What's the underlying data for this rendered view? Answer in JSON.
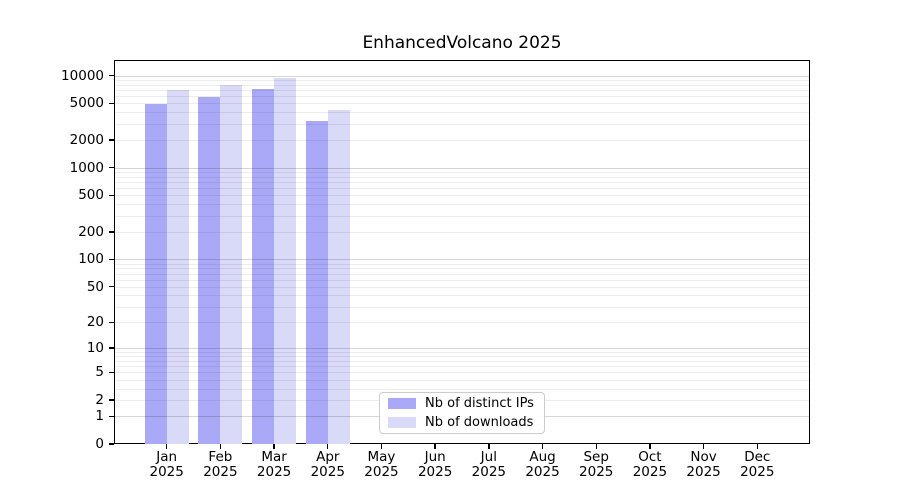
{
  "chart_data": {
    "type": "bar",
    "title": "EnhancedVolcano 2025",
    "months": [
      "Jan",
      "Feb",
      "Mar",
      "Apr",
      "May",
      "Jun",
      "Jul",
      "Aug",
      "Sep",
      "Oct",
      "Nov",
      "Dec"
    ],
    "year": "2025",
    "series": [
      {
        "name": "Nb of distinct IPs",
        "color": "#a9a9f7",
        "values": [
          4900,
          5800,
          7200,
          3200,
          null,
          null,
          null,
          null,
          null,
          null,
          null,
          null
        ]
      },
      {
        "name": "Nb of downloads",
        "color": "#d9d9f8",
        "values": [
          7000,
          7900,
          9400,
          4200,
          null,
          null,
          null,
          null,
          null,
          null,
          null,
          null
        ]
      }
    ],
    "y_ticks": [
      0,
      1,
      2,
      5,
      10,
      20,
      50,
      100,
      200,
      500,
      1000,
      2000,
      5000,
      10000
    ],
    "y_scale": "log10(1+v)",
    "y_axis_max": 14800,
    "grid": "horizontal, major and minor",
    "legend_position": "bottom-center",
    "colors": {
      "grid_major": "rgba(0,0,0,0.16)",
      "grid_minor": "rgba(0,0,0,0.07)",
      "axis": "#000000",
      "background": "#ffffff"
    }
  }
}
